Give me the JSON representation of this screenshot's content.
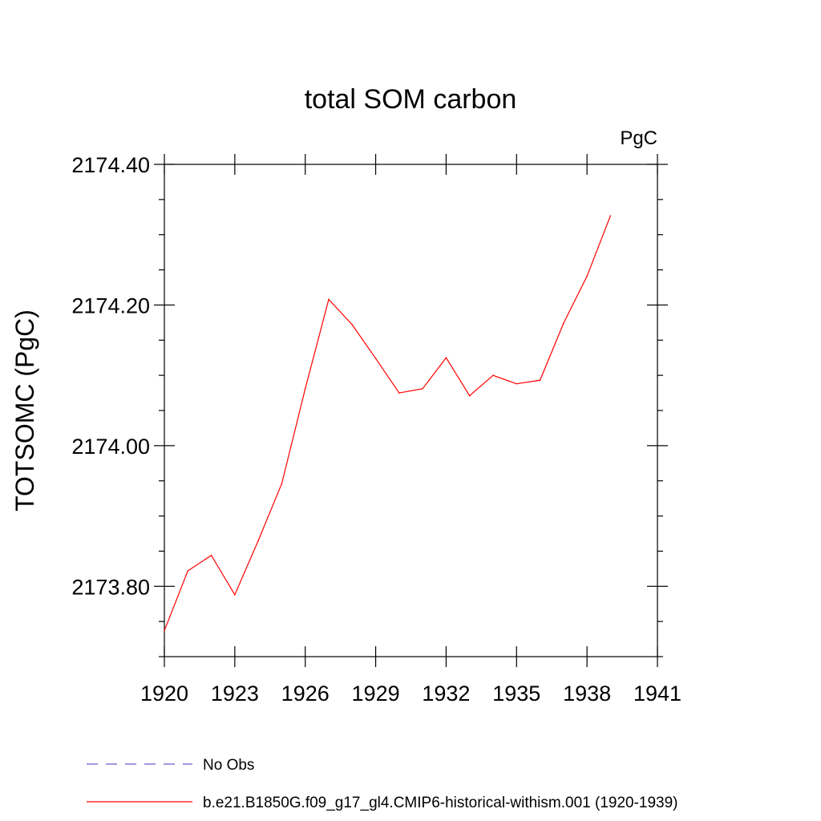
{
  "chart_data": {
    "type": "line",
    "title": "total SOM carbon",
    "units_label": "PgC",
    "ylabel": "TOTSOMC  (PgC)",
    "xlabel": "",
    "xlim": [
      1920,
      1941
    ],
    "ylim": [
      2173.7,
      2174.4
    ],
    "x_ticks": [
      1920,
      1923,
      1926,
      1929,
      1932,
      1935,
      1938,
      1941
    ],
    "y_ticks": [
      "2173.80",
      "2174.00",
      "2174.20",
      "2174.40"
    ],
    "y_tick_values": [
      2173.8,
      2174.0,
      2174.2,
      2174.4
    ],
    "grid": false,
    "legend_position": "bottom",
    "series": [
      {
        "name": "No Obs",
        "color": "#6a5acd",
        "dash": "dashed",
        "x": [],
        "values": []
      },
      {
        "name": "b.e21.B1850G.f09_g17_gl4.CMIP6-historical-withism.001 (1920-1939)",
        "color": "#ff0000",
        "dash": "solid",
        "x": [
          1920,
          1921,
          1922,
          1923,
          1924,
          1925,
          1926,
          1927,
          1928,
          1929,
          1930,
          1931,
          1932,
          1933,
          1934,
          1935,
          1936,
          1937,
          1938,
          1939
        ],
        "values": [
          2173.737,
          2173.822,
          2173.844,
          2173.788,
          2173.865,
          2173.946,
          2174.081,
          2174.208,
          2174.172,
          2174.124,
          2174.075,
          2174.081,
          2174.125,
          2174.071,
          2174.1,
          2174.088,
          2174.093,
          2174.174,
          2174.241,
          2174.327
        ]
      }
    ]
  }
}
